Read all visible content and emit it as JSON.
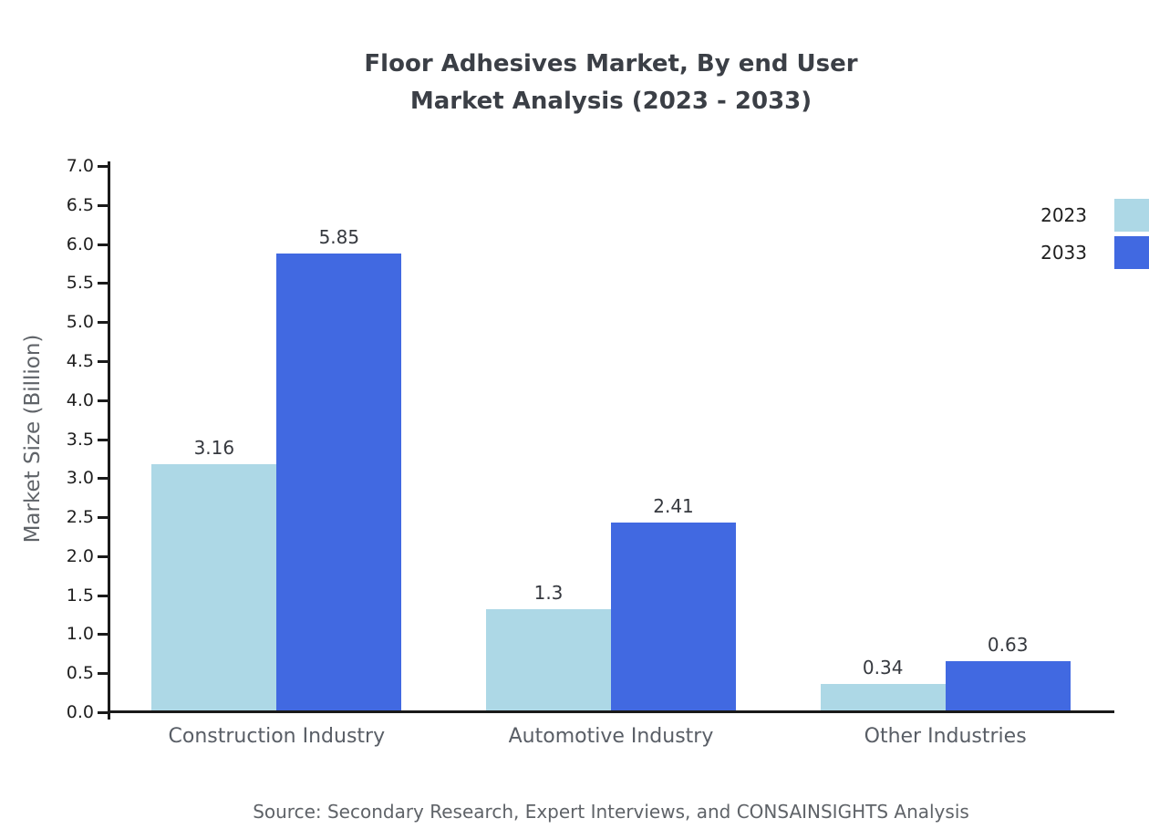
{
  "title": {
    "line1": "Floor Adhesives Market, By end User",
    "line2": "Market Analysis (2023 - 2033)"
  },
  "source": "Source: Secondary Research, Expert Interviews, and CONSAINSIGHTS Analysis",
  "chart_data": {
    "type": "bar",
    "title": "Floor Adhesives Market, By end User Market Analysis (2023 - 2033)",
    "categories": [
      "Construction Industry",
      "Automotive Industry",
      "Other Industries"
    ],
    "series": [
      {
        "name": "2023",
        "color": "#add8e6",
        "values": [
          3.16,
          1.3,
          0.34
        ]
      },
      {
        "name": "2033",
        "color": "#4169e1",
        "values": [
          5.85,
          2.41,
          0.63
        ]
      }
    ],
    "xlabel": "",
    "ylabel": "Market Size (Billion)",
    "ylim": [
      0,
      7
    ],
    "ytick_step": 0.5,
    "grid": false,
    "legend_position": "top-right",
    "axis_color": "#1a1a1a"
  }
}
